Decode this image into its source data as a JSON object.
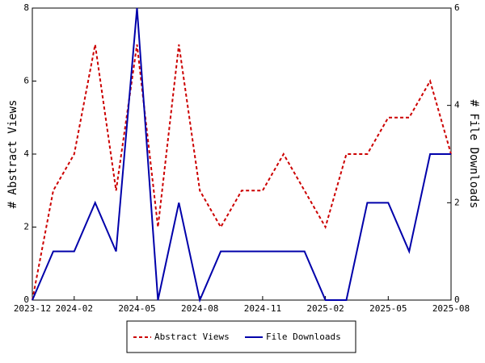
{
  "chart_data": {
    "type": "line",
    "x": [
      "2023-12",
      "2024-01",
      "2024-02",
      "2024-03",
      "2024-04",
      "2024-05",
      "2024-06",
      "2024-07",
      "2024-08",
      "2024-09",
      "2024-10",
      "2024-11",
      "2024-12",
      "2025-01",
      "2025-02",
      "2025-03",
      "2025-04",
      "2025-05",
      "2025-06",
      "2025-07",
      "2025-08"
    ],
    "xticks": [
      "2023-12",
      "2024-02",
      "2024-05",
      "2024-08",
      "2024-11",
      "2025-02",
      "2025-05",
      "2025-08"
    ],
    "y_label": "# Abstract Views",
    "y2_label": "# File Downloads",
    "ylim": [
      0,
      8
    ],
    "yticks": [
      0,
      2,
      4,
      6,
      8
    ],
    "y2lim": [
      0,
      6
    ],
    "y2ticks": [
      0,
      2,
      4,
      6
    ],
    "series": [
      {
        "name": "Abstract Views",
        "color": "#cc0000",
        "dashed": true,
        "values": [
          0,
          3,
          4,
          7,
          3,
          7,
          2,
          7,
          3,
          2,
          3,
          3,
          4,
          3,
          2,
          4,
          4,
          5,
          5,
          6,
          4
        ]
      },
      {
        "name": "File Downloads",
        "color": "#0000aa",
        "axis": "y2",
        "dashed": false,
        "values": [
          0,
          1,
          1,
          2,
          1,
          6,
          0,
          2,
          0,
          1,
          1,
          1,
          1,
          1,
          0,
          0,
          2,
          2,
          1,
          3,
          3
        ]
      }
    ]
  }
}
